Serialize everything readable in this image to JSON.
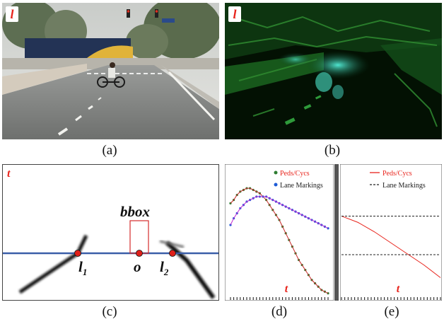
{
  "captions": {
    "a": "(a)",
    "b": "(b)",
    "c": "(c)",
    "d": "(d)",
    "e": "(e)"
  },
  "panel_a": {
    "corner_label": "l"
  },
  "panel_b": {
    "corner_label": "l"
  },
  "panel_c": {
    "corner_label": "t",
    "bbox_label": "bbox",
    "point_l1": "l",
    "point_l1_sub": "1",
    "point_o": "o",
    "point_l2": "l",
    "point_l2_sub": "2"
  },
  "chart_data": [
    {
      "type": "scatter",
      "panel": "d",
      "xlabel": "t",
      "series": [
        {
          "name": "Peds/Cycs",
          "color": "#2e7d32",
          "x": [
            0,
            1,
            2,
            3,
            4,
            5,
            6,
            7,
            8,
            9,
            10,
            11,
            12,
            13,
            14,
            15,
            16,
            17,
            18,
            19,
            20,
            21,
            22,
            23,
            24,
            25,
            26,
            27,
            28,
            29,
            30
          ],
          "y": [
            55,
            57,
            60,
            62,
            63,
            64,
            64,
            63,
            62,
            61,
            59,
            57,
            54,
            51,
            48,
            45,
            41,
            37,
            33,
            29,
            25,
            21,
            18,
            15,
            12,
            9,
            7,
            5,
            3,
            2,
            1
          ]
        },
        {
          "name": "Lane Markings",
          "color": "#1e5bd6",
          "x": [
            0,
            1,
            2,
            3,
            4,
            5,
            6,
            7,
            8,
            9,
            10,
            11,
            12,
            13,
            14,
            15,
            16,
            17,
            18,
            19,
            20,
            21,
            22,
            23,
            24,
            25,
            26,
            27,
            28,
            29,
            30
          ],
          "y": [
            42,
            46,
            49,
            52,
            54,
            56,
            57,
            58,
            59,
            59,
            59,
            59,
            58,
            57,
            56,
            55,
            54,
            53,
            52,
            51,
            50,
            49,
            48,
            47,
            46,
            45,
            44,
            43,
            42,
            41,
            40
          ]
        }
      ],
      "legend": "top-right"
    },
    {
      "type": "line",
      "panel": "e",
      "xlabel": "t",
      "series": [
        {
          "name": "Peds/Cycs",
          "color": "#e8241c",
          "style": "solid",
          "x": [
            0,
            5,
            10,
            15,
            20,
            25,
            30
          ],
          "y": [
            100,
            92,
            80,
            66,
            52,
            38,
            22
          ]
        },
        {
          "name": "Lane Markings",
          "color": "#222222",
          "style": "dashed",
          "x": [
            0,
            30
          ],
          "y": [
            100,
            100
          ]
        }
      ],
      "legend": "top-right"
    }
  ]
}
